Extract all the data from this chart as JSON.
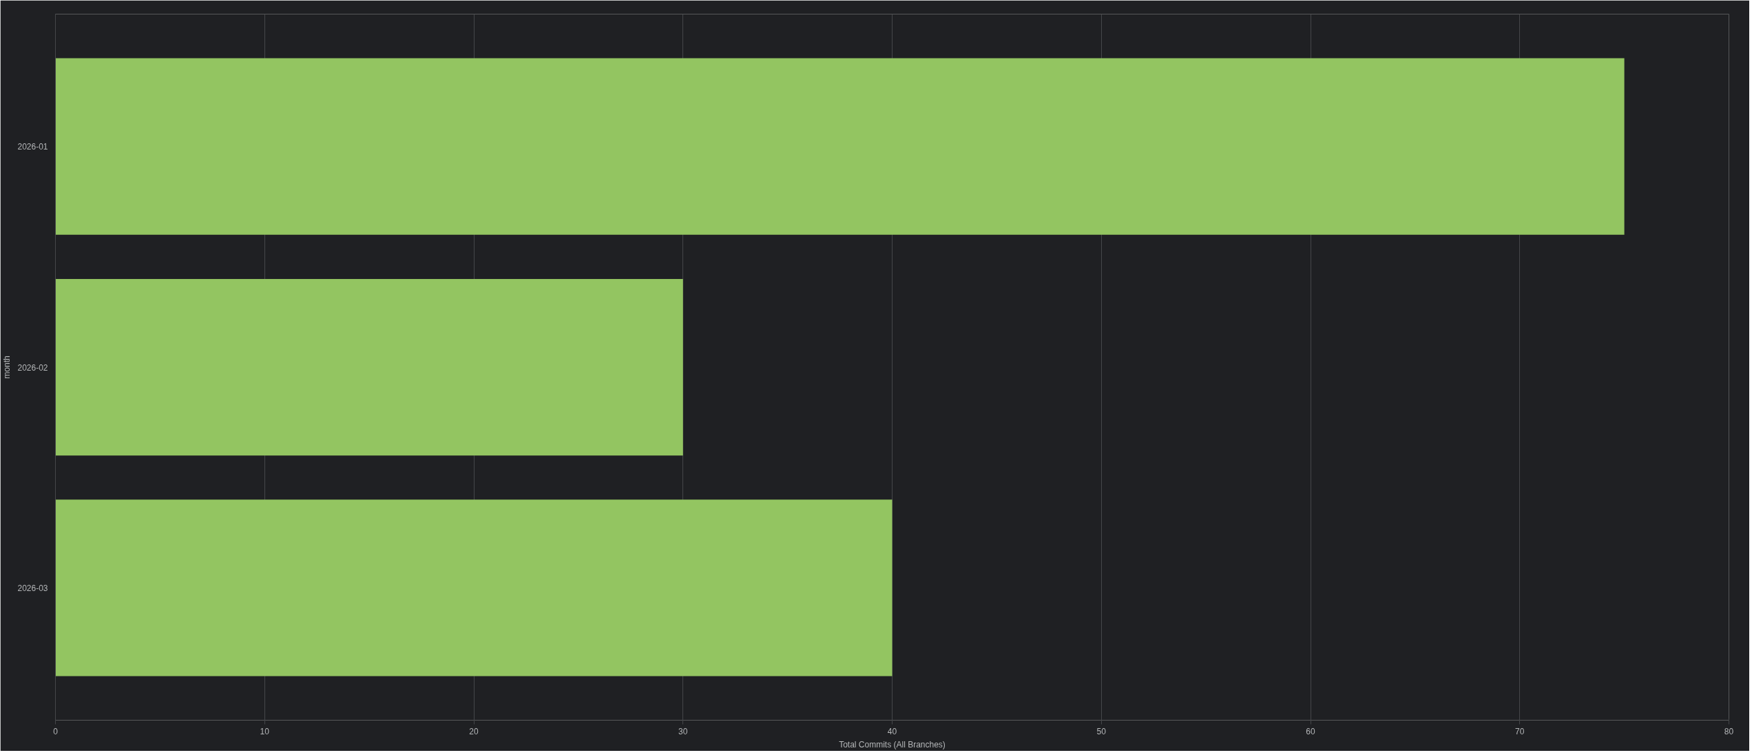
{
  "chart_data": {
    "type": "bar",
    "orientation": "horizontal",
    "categories": [
      "2026-01",
      "2026-02",
      "2026-03"
    ],
    "values": [
      75,
      30,
      40
    ],
    "color": "#93c561",
    "xlim": [
      0,
      80
    ],
    "xticks": [
      0,
      10,
      20,
      30,
      40,
      50,
      60,
      70,
      80
    ],
    "grid": "x",
    "xlabel": "Total Commits (All Branches)",
    "ylabel": "month"
  }
}
